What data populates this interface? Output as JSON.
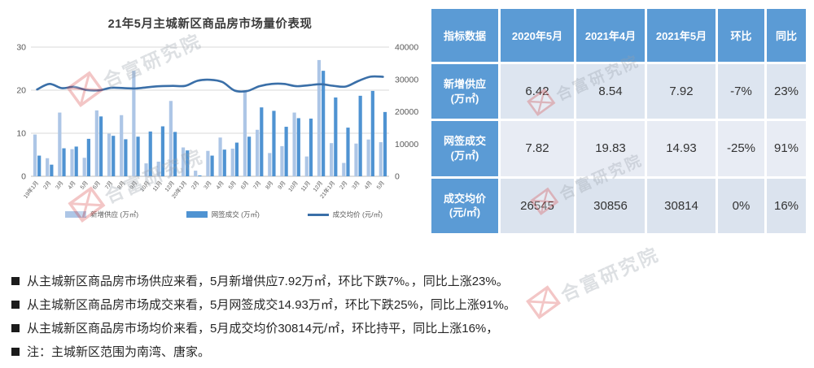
{
  "watermark": {
    "text": "合富研究院"
  },
  "chart": {
    "title": "21年5月主城新区商品房市场量价表现"
  },
  "chart_data": {
    "type": "bar+line",
    "title": "21年5月主城新区商品房市场量价表现",
    "categories": [
      "19年1月",
      "2月",
      "3月",
      "4月",
      "5月",
      "6月",
      "7月",
      "8月",
      "9月",
      "10月",
      "11月",
      "12月",
      "20年1月",
      "2月",
      "3月",
      "4月",
      "5月",
      "6月",
      "7月",
      "8月",
      "9月",
      "10月",
      "11月",
      "12月",
      "21年1月",
      "2月",
      "3月",
      "4月",
      "5月"
    ],
    "series": [
      {
        "name": "新增供应 (万㎡)",
        "type": "bar",
        "axis": "left",
        "color": "#adc6e6",
        "values": [
          9.7,
          4.2,
          14.8,
          6.3,
          4.3,
          15.3,
          9.9,
          14.2,
          24.5,
          3.0,
          3.4,
          17.5,
          6.7,
          1.3,
          5.9,
          9.0,
          6.42,
          20.0,
          10.8,
          5.4,
          7.0,
          14.8,
          4.6,
          27.0,
          7.7,
          3.1,
          7.6,
          8.54,
          7.92
        ]
      },
      {
        "name": "网签成交 (万㎡)",
        "type": "bar",
        "axis": "left",
        "color": "#4f93d2",
        "values": [
          4.8,
          2.7,
          6.5,
          6.9,
          8.7,
          13.9,
          9.4,
          8.6,
          9.2,
          10.4,
          11.6,
          10.3,
          6.0,
          0.2,
          4.8,
          6.2,
          7.82,
          9.2,
          16.0,
          15.2,
          11.5,
          13.5,
          13.4,
          24.5,
          18.3,
          11.3,
          18.7,
          19.83,
          14.93
        ]
      },
      {
        "name": "成交均价 (元/㎡)",
        "type": "line",
        "axis": "right",
        "color": "#3a6fa8",
        "values": [
          26900,
          28600,
          27300,
          27700,
          26700,
          26600,
          27400,
          27300,
          27200,
          27600,
          27900,
          28000,
          28000,
          29600,
          29900,
          29200,
          26545,
          26400,
          27900,
          28600,
          28600,
          27900,
          28200,
          28500,
          28000,
          27800,
          29500,
          30856,
          30814
        ]
      }
    ],
    "left_ylim": [
      0,
      30
    ],
    "right_ylim": [
      0,
      40000
    ],
    "left_ticks": [
      0,
      10,
      20,
      30
    ],
    "right_ticks": [
      0,
      10000,
      20000,
      30000,
      40000
    ],
    "grid": true,
    "legend_position": "bottom"
  },
  "table": {
    "header": [
      "指标数据",
      "2020年5月",
      "2021年4月",
      "2021年5月",
      "环比",
      "同比"
    ],
    "rows": [
      {
        "label": "新增供应",
        "unit": "(万㎡)",
        "values": [
          "6.42",
          "8.54",
          "7.92",
          "-7%",
          "23%"
        ]
      },
      {
        "label": "网签成交",
        "unit": "(万㎡)",
        "values": [
          "7.82",
          "19.83",
          "14.93",
          "-25%",
          "91%"
        ]
      },
      {
        "label": "成交均价",
        "unit": "(元/㎡)",
        "values": [
          "26545",
          "30856",
          "30814",
          "0%",
          "16%"
        ]
      }
    ]
  },
  "bullets": [
    "从主城新区商品房市场供应来看，5月新增供应7.92万㎡，环比下跌7%。，同比上涨23%。",
    "从主城新区商品房市场成交来看，5月网签成交14.93万㎡，环比下跌25%，同比上涨91%。",
    "从主城新区商品房市场均价来看，5月成交均价30814元/㎡，环比持平，同比上涨16%，",
    "注：主城新区范围为南湾、唐家。"
  ]
}
